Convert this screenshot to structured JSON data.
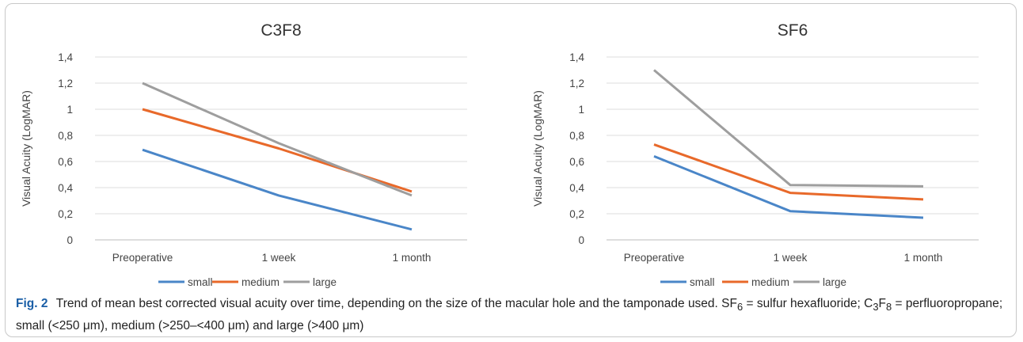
{
  "chart_data": [
    {
      "type": "line",
      "title": "C3F8",
      "xlabel": "",
      "ylabel": "Visual Acuity (LogMAR)",
      "categories": [
        "Preoperative",
        "1 week",
        "1 month"
      ],
      "yticks": [
        "0",
        "0,2",
        "0,4",
        "0,6",
        "0,8",
        "1",
        "1,2",
        "1,4"
      ],
      "ylim": [
        0,
        1.4
      ],
      "grid": true,
      "legend_position": "bottom",
      "series": [
        {
          "name": "small",
          "color": "#4a86c8",
          "values": [
            0.69,
            0.34,
            0.08
          ]
        },
        {
          "name": "medium",
          "color": "#e8692a",
          "values": [
            1.0,
            0.7,
            0.37
          ]
        },
        {
          "name": "large",
          "color": "#9e9e9e",
          "values": [
            1.2,
            0.74,
            0.34
          ]
        }
      ]
    },
    {
      "type": "line",
      "title": "SF6",
      "xlabel": "",
      "ylabel": "Visual Acuity (LogMAR)",
      "categories": [
        "Preoperative",
        "1 week",
        "1 month"
      ],
      "yticks": [
        "0",
        "0,2",
        "0,4",
        "0,6",
        "0,8",
        "1",
        "1,2",
        "1,4"
      ],
      "ylim": [
        0,
        1.4
      ],
      "grid": true,
      "legend_position": "bottom",
      "series": [
        {
          "name": "small",
          "color": "#4a86c8",
          "values": [
            0.64,
            0.22,
            0.17
          ]
        },
        {
          "name": "medium",
          "color": "#e8692a",
          "values": [
            0.73,
            0.36,
            0.31
          ]
        },
        {
          "name": "large",
          "color": "#9e9e9e",
          "values": [
            1.3,
            0.42,
            0.41
          ]
        }
      ]
    }
  ],
  "caption": {
    "label": "Fig. 2",
    "title": "Trend of mean best corrected visual acuity over time, depending on the size of the macular hole and the tamponade used.",
    "sf6": "SF",
    "sf6_sub": "6",
    "sf6_def": " = sulfur hexafluoride; ",
    "c3f8_c": "C",
    "c3f8_sub1": "3",
    "c3f8_f": "F",
    "c3f8_sub2": "8",
    "c3f8_def": " = perfluoropropane; small (<250 μm), medium (>250–<400 μm) and large (>400 μm)"
  }
}
